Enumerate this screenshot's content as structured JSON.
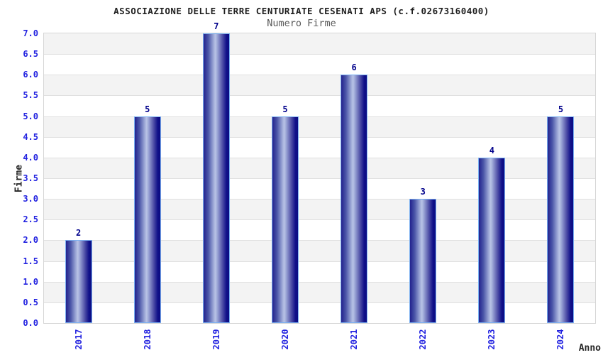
{
  "chart_data": {
    "type": "bar",
    "title": "ASSOCIAZIONE DELLE TERRE CENTURIATE CESENATI APS (c.f.02673160400)",
    "subtitle": "Numero Firme",
    "xlabel": "Anno",
    "ylabel": "Firme",
    "categories": [
      "2017",
      "2018",
      "2019",
      "2020",
      "2021",
      "2022",
      "2023",
      "2024"
    ],
    "values": [
      2,
      5,
      7,
      5,
      6,
      3,
      4,
      5
    ],
    "value_labels": [
      "2",
      "5",
      "7",
      "5",
      "6",
      "3",
      "4",
      "5"
    ],
    "ylim": [
      0,
      7
    ],
    "ytick_step": 0.5,
    "yticks": [
      "0.0",
      "0.5",
      "1.0",
      "1.5",
      "2.0",
      "2.5",
      "3.0",
      "3.5",
      "4.0",
      "4.5",
      "5.0",
      "5.5",
      "6.0",
      "6.5",
      "7.0"
    ],
    "grid_bands": true,
    "legend": "none",
    "colors": {
      "bar_dark": "#23238e",
      "bar_mid": "#4a55a8",
      "bar_light": "#b9c3e6",
      "bar_dark_right": "#0c0c82",
      "bar_border": "#7ab0f2",
      "tick_text": "#2222e0",
      "value_text": "#00008b",
      "band_gray": "#f3f3f3",
      "band_white": "#ffffff",
      "gridline": "#e0e0e0",
      "plot_border": "#d6d6d6",
      "title_text": "#1f1f1f",
      "subtitle_text": "#595959",
      "axis_label_text": "#262626"
    }
  }
}
